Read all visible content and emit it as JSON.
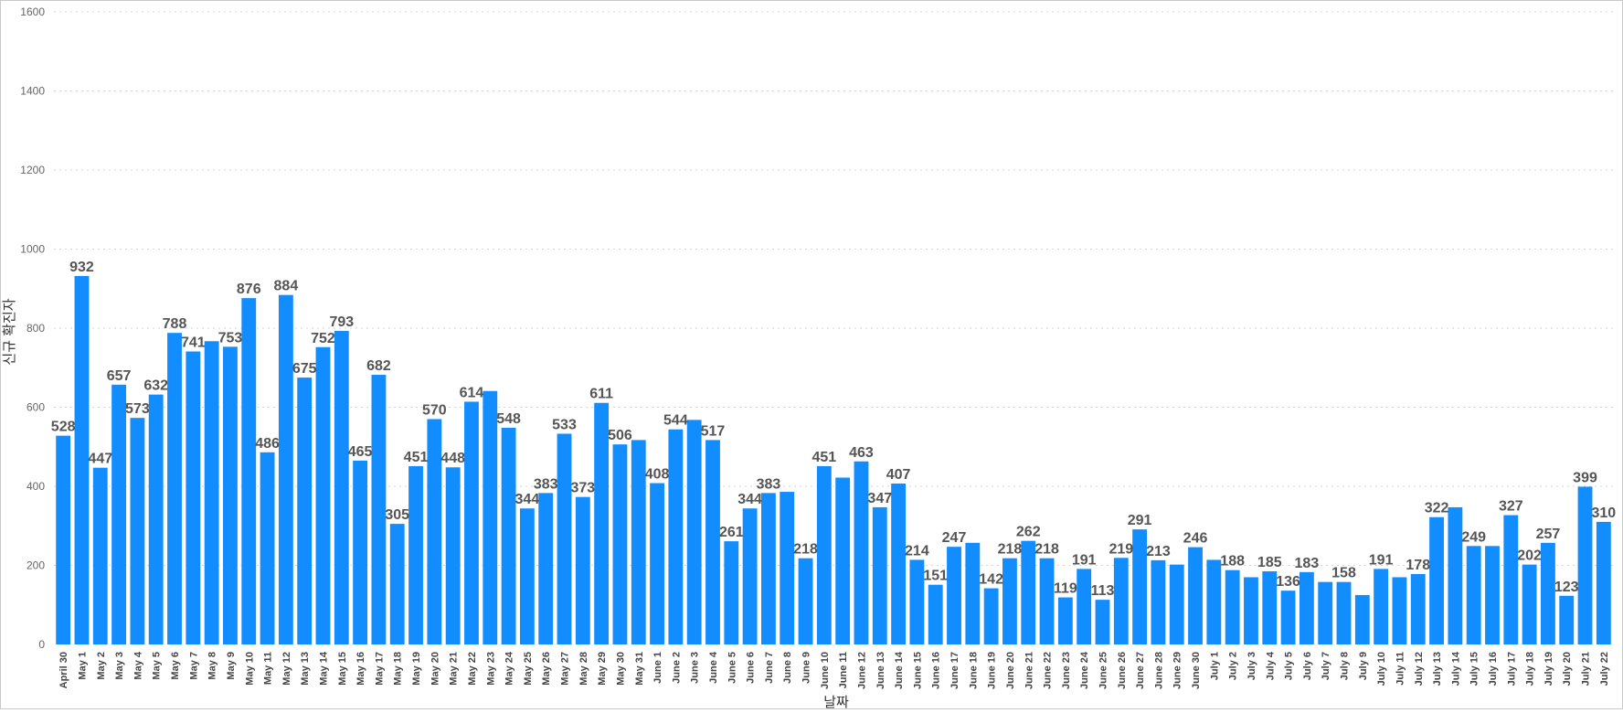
{
  "chart_data": {
    "type": "bar",
    "title": "",
    "xlabel": "날짜",
    "ylabel": "신규 확진자",
    "ylim": [
      0,
      1600
    ],
    "yticks": [
      0,
      200,
      400,
      600,
      800,
      1000,
      1200,
      1400,
      1600
    ],
    "grid": true,
    "bar_color": "#118DFF",
    "categories": [
      "April 30",
      "May 1",
      "May 2",
      "May 3",
      "May 4",
      "May 5",
      "May 6",
      "May 7",
      "May 8",
      "May 9",
      "May 10",
      "May 11",
      "May 12",
      "May 13",
      "May 14",
      "May 15",
      "May 16",
      "May 17",
      "May 18",
      "May 19",
      "May 20",
      "May 21",
      "May 22",
      "May 23",
      "May 24",
      "May 25",
      "May 26",
      "May 27",
      "May 28",
      "May 29",
      "May 30",
      "May 31",
      "June 1",
      "June 2",
      "June 3",
      "June 4",
      "June 5",
      "June 6",
      "June 7",
      "June 8",
      "June 9",
      "June 10",
      "June 11",
      "June 12",
      "June 13",
      "June 14",
      "June 15",
      "June 16",
      "June 17",
      "June 18",
      "June 19",
      "June 20",
      "June 21",
      "June 22",
      "June 23",
      "June 24",
      "June 25",
      "June 26",
      "June 27",
      "June 28",
      "June 29",
      "June 30",
      "July 1",
      "July 2",
      "July 3",
      "July 4",
      "July 5",
      "July 6",
      "July 7",
      "July 8",
      "July 9",
      "July 10",
      "July 11",
      "July 12",
      "July 13",
      "July 14",
      "July 15",
      "July 16",
      "July 17",
      "July 18",
      "July 19",
      "July 20",
      "July 21",
      "July 22"
    ],
    "values": [
      528,
      932,
      447,
      657,
      573,
      632,
      788,
      741,
      767,
      753,
      876,
      486,
      884,
      675,
      752,
      793,
      465,
      682,
      305,
      451,
      570,
      448,
      614,
      641,
      548,
      344,
      383,
      533,
      373,
      611,
      506,
      517,
      408,
      544,
      568,
      517,
      261,
      344,
      383,
      386,
      218,
      451,
      422,
      463,
      347,
      407,
      214,
      151,
      247,
      257,
      142,
      218,
      262,
      218,
      119,
      191,
      113,
      219,
      291,
      213,
      202,
      246,
      214,
      188,
      170,
      185,
      136,
      183,
      158,
      158,
      125,
      191,
      170,
      178,
      322,
      347,
      249,
      249,
      327,
      202,
      257,
      123,
      399,
      310
    ],
    "data_labels": [
      "528",
      "932",
      "447",
      "657",
      "573",
      "632",
      "788",
      "741",
      "",
      "753",
      "876",
      "486",
      "884",
      "675",
      "752",
      "793",
      "465",
      "682",
      "305",
      "451",
      "570",
      "448",
      "614",
      "",
      "548",
      "344",
      "383",
      "533",
      "373",
      "611",
      "506",
      "",
      "408",
      "544",
      "",
      "517",
      "261",
      "344",
      "383",
      "",
      "218",
      "451",
      "",
      "463",
      "347",
      "407",
      "214",
      "151",
      "247",
      "",
      "142",
      "218",
      "262",
      "218",
      "119",
      "191",
      "113",
      "219",
      "291",
      "213",
      "",
      "246",
      "",
      "188",
      "",
      "185",
      "136",
      "183",
      "",
      "158",
      "",
      "191",
      "",
      "178",
      "322",
      "",
      "249",
      "",
      "327",
      "202",
      "257",
      "123",
      "399",
      "310"
    ]
  }
}
